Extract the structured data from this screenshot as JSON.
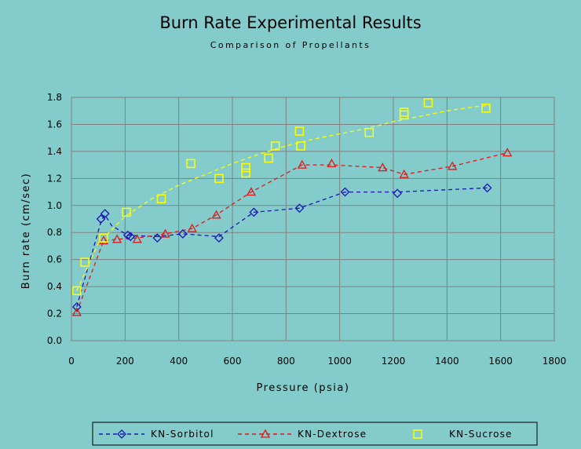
{
  "chart_data": {
    "type": "scatter",
    "title": "Burn Rate Experimental Results",
    "subtitle": "Comparison of Propellants",
    "xlabel": "Pressure (psia)",
    "ylabel": "Burn rate (cm/sec)",
    "xlim": [
      0,
      1800
    ],
    "ylim": [
      0,
      1.8
    ],
    "xticks": [
      0,
      200,
      400,
      600,
      800,
      1000,
      1200,
      1400,
      1600,
      1800
    ],
    "yticks": [
      "0.0",
      "0.2",
      "0.4",
      "0.6",
      "0.8",
      "1.0",
      "1.2",
      "1.4",
      "1.6",
      "1.8"
    ],
    "grid": true,
    "legend_position": "bottom",
    "series": [
      {
        "name": "KN-Sorbitol",
        "color": "#1818b0",
        "marker": "diamond",
        "points": [
          [
            20,
            0.25
          ],
          [
            110,
            0.9
          ],
          [
            125,
            0.94
          ],
          [
            210,
            0.78
          ],
          [
            220,
            0.77
          ],
          [
            320,
            0.76
          ],
          [
            415,
            0.79
          ],
          [
            550,
            0.76
          ],
          [
            680,
            0.95
          ],
          [
            850,
            0.98
          ],
          [
            1020,
            1.1
          ],
          [
            1215,
            1.09
          ],
          [
            1550,
            1.13
          ]
        ],
        "trend": [
          [
            20,
            0.25
          ],
          [
            110,
            0.88
          ],
          [
            125,
            0.93
          ],
          [
            150,
            0.85
          ],
          [
            210,
            0.78
          ],
          [
            320,
            0.77
          ],
          [
            415,
            0.79
          ],
          [
            550,
            0.77
          ],
          [
            680,
            0.95
          ],
          [
            850,
            0.98
          ],
          [
            1020,
            1.1
          ],
          [
            1215,
            1.1
          ],
          [
            1550,
            1.13
          ]
        ]
      },
      {
        "name": "KN-Dextrose",
        "color": "#e01818",
        "marker": "triangle",
        "points": [
          [
            20,
            0.21
          ],
          [
            120,
            0.74
          ],
          [
            170,
            0.75
          ],
          [
            245,
            0.75
          ],
          [
            350,
            0.79
          ],
          [
            450,
            0.83
          ],
          [
            540,
            0.93
          ],
          [
            670,
            1.1
          ],
          [
            860,
            1.3
          ],
          [
            970,
            1.31
          ],
          [
            1160,
            1.28
          ],
          [
            1240,
            1.23
          ],
          [
            1420,
            1.29
          ],
          [
            1625,
            1.39
          ]
        ],
        "trend": [
          [
            20,
            0.21
          ],
          [
            120,
            0.74
          ],
          [
            170,
            0.75
          ],
          [
            245,
            0.76
          ],
          [
            350,
            0.79
          ],
          [
            450,
            0.83
          ],
          [
            540,
            0.93
          ],
          [
            670,
            1.1
          ],
          [
            860,
            1.3
          ],
          [
            970,
            1.3
          ],
          [
            1160,
            1.28
          ],
          [
            1240,
            1.23
          ],
          [
            1420,
            1.29
          ],
          [
            1625,
            1.39
          ]
        ]
      },
      {
        "name": "KN-Sucrose",
        "color": "#ffff00",
        "marker": "square",
        "points": [
          [
            20,
            0.37
          ],
          [
            50,
            0.58
          ],
          [
            120,
            0.76
          ],
          [
            205,
            0.95
          ],
          [
            335,
            1.05
          ],
          [
            445,
            1.31
          ],
          [
            550,
            1.2
          ],
          [
            650,
            1.24
          ],
          [
            650,
            1.28
          ],
          [
            735,
            1.35
          ],
          [
            760,
            1.44
          ],
          [
            850,
            1.55
          ],
          [
            855,
            1.44
          ],
          [
            1110,
            1.54
          ],
          [
            1240,
            1.67
          ],
          [
            1240,
            1.69
          ],
          [
            1330,
            1.76
          ],
          [
            1545,
            1.72
          ]
        ],
        "trend": [
          [
            20,
            0.37
          ],
          [
            100,
            0.72
          ],
          [
            200,
            0.92
          ],
          [
            300,
            1.05
          ],
          [
            400,
            1.15
          ],
          [
            500,
            1.23
          ],
          [
            600,
            1.31
          ],
          [
            700,
            1.38
          ],
          [
            800,
            1.44
          ],
          [
            900,
            1.49
          ],
          [
            1000,
            1.53
          ],
          [
            1100,
            1.57
          ],
          [
            1200,
            1.62
          ],
          [
            1300,
            1.66
          ],
          [
            1400,
            1.7
          ],
          [
            1500,
            1.73
          ],
          [
            1560,
            1.74
          ]
        ]
      }
    ]
  }
}
